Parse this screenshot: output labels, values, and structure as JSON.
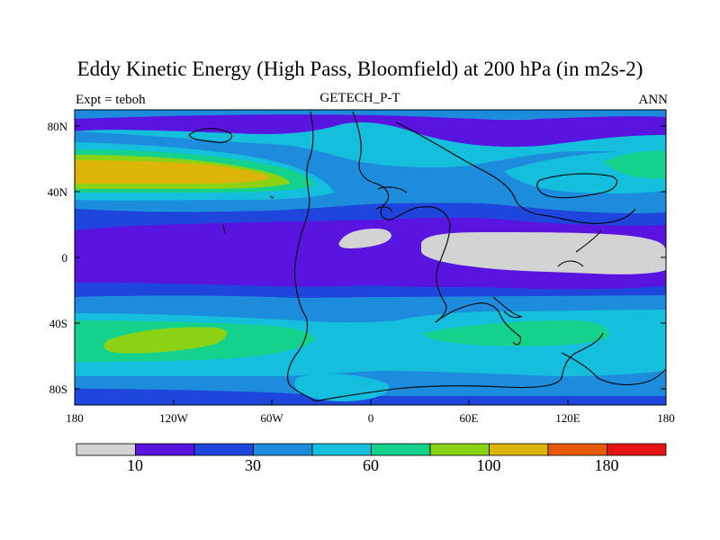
{
  "title": "Eddy Kinetic Energy (High Pass, Bloomfield) at 200 hPa (in m2s-2)",
  "subtitle_left": "Expt = teboh",
  "subtitle_center": "GETECH_P-T",
  "subtitle_right": "ANN",
  "y_ticks": [
    "80N",
    "40N",
    "0",
    "40S",
    "80S"
  ],
  "x_ticks": [
    "180",
    "120W",
    "60W",
    "0",
    "60E",
    "120E",
    "180"
  ],
  "colorbar": {
    "colors": [
      "#d3d3d3",
      "#5a14e0",
      "#1e46dc",
      "#1e8cdc",
      "#14bedc",
      "#14d28c",
      "#8cd214",
      "#dcb40a",
      "#e65a0a",
      "#e61414"
    ],
    "labels": [
      "10",
      "30",
      "60",
      "100",
      "180"
    ]
  },
  "colors": {
    "purple": "#5a14e0",
    "blue": "#1e46dc",
    "mid_blue": "#1e8cdc",
    "cyan": "#14bedc",
    "green": "#14d28c",
    "lime": "#8cd214",
    "orange": "#dcb40a",
    "grey": "#d3d3d3"
  }
}
